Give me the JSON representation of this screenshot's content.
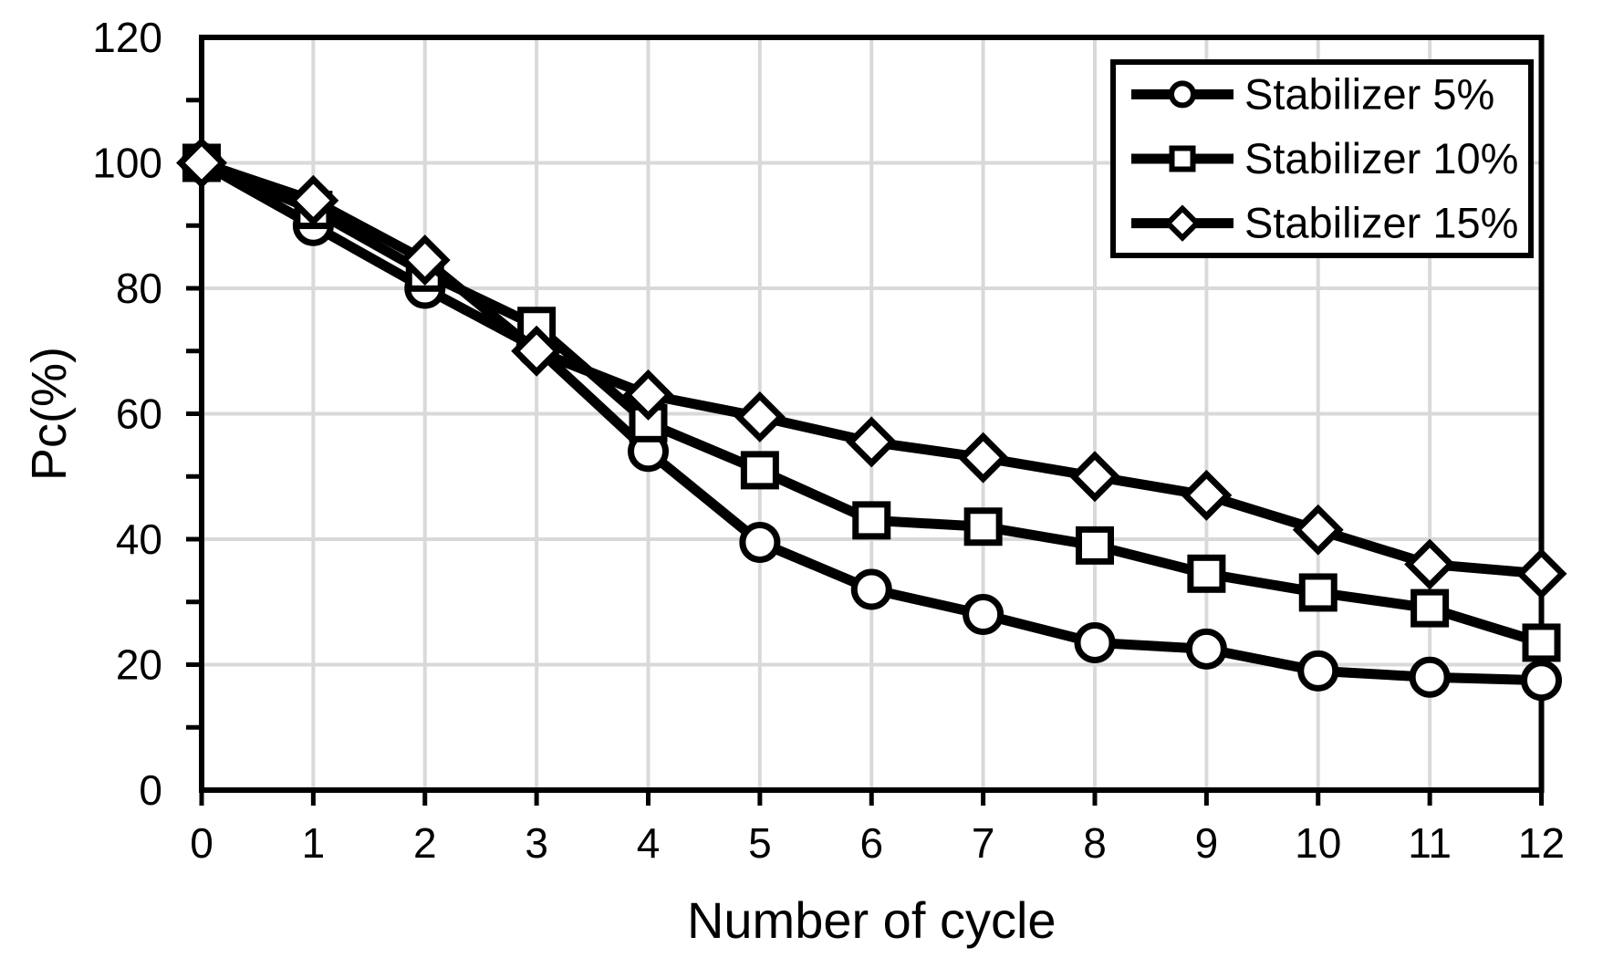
{
  "figure": {
    "background": "#ffffff",
    "line_color": "#000000",
    "grid_color": "#d9d9d9",
    "marker_fill": "#ffffff"
  },
  "chart_data": {
    "type": "line",
    "title": "",
    "xlabel": "Number of cycle",
    "ylabel": "Pc(%)",
    "xlim": [
      0,
      12
    ],
    "ylim": [
      0,
      120
    ],
    "x": [
      0,
      1,
      2,
      3,
      4,
      5,
      6,
      7,
      8,
      9,
      10,
      11,
      12
    ],
    "x_tick_labels": [
      "0",
      "1",
      "2",
      "3",
      "4",
      "5",
      "6",
      "7",
      "8",
      "9",
      "10",
      "11",
      "12"
    ],
    "y_ticks": [
      0,
      20,
      40,
      60,
      80,
      100,
      120
    ],
    "y_tick_labels": [
      "0",
      "20",
      "40",
      "60",
      "80",
      "100",
      "120"
    ],
    "y_minor_tick_step": 10,
    "grid": true,
    "legend_position": "top-right",
    "series": [
      {
        "name": "Stabilizer 5%",
        "marker": "circle",
        "values": [
          100,
          90,
          80,
          70.5,
          54,
          39.5,
          32,
          28,
          23.5,
          22.5,
          19,
          18,
          17.5
        ]
      },
      {
        "name": "Stabilizer 10%",
        "marker": "square",
        "values": [
          100,
          92.5,
          82.5,
          74,
          58.5,
          51,
          43,
          42,
          39,
          34.5,
          31.5,
          29,
          23.5
        ]
      },
      {
        "name": "Stabilizer 15%",
        "marker": "diamond",
        "values": [
          100,
          94,
          84.5,
          70,
          63,
          59.5,
          55.5,
          53,
          50,
          47,
          41.5,
          36,
          34.5
        ]
      }
    ]
  }
}
